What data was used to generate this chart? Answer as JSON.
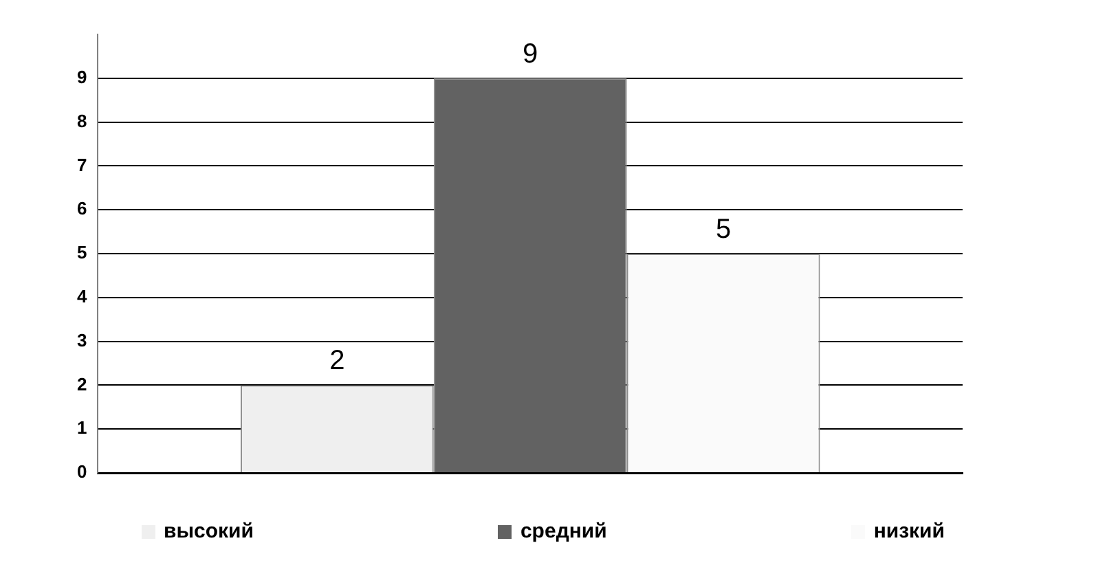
{
  "chart_data": {
    "type": "bar",
    "categories": [
      null
    ],
    "series": [
      {
        "name": "высокий",
        "color": "#efefef",
        "values": [
          2
        ]
      },
      {
        "name": "средний",
        "color": "#626262",
        "values": [
          9
        ]
      },
      {
        "name": "низкий",
        "color": "#fafafa",
        "values": [
          5
        ]
      }
    ],
    "ylim": [
      0,
      10
    ],
    "yticks": [
      0,
      1,
      2,
      3,
      4,
      5,
      6,
      7,
      8,
      9
    ],
    "grid": "y",
    "legend": "bottom",
    "data_labels": true
  }
}
